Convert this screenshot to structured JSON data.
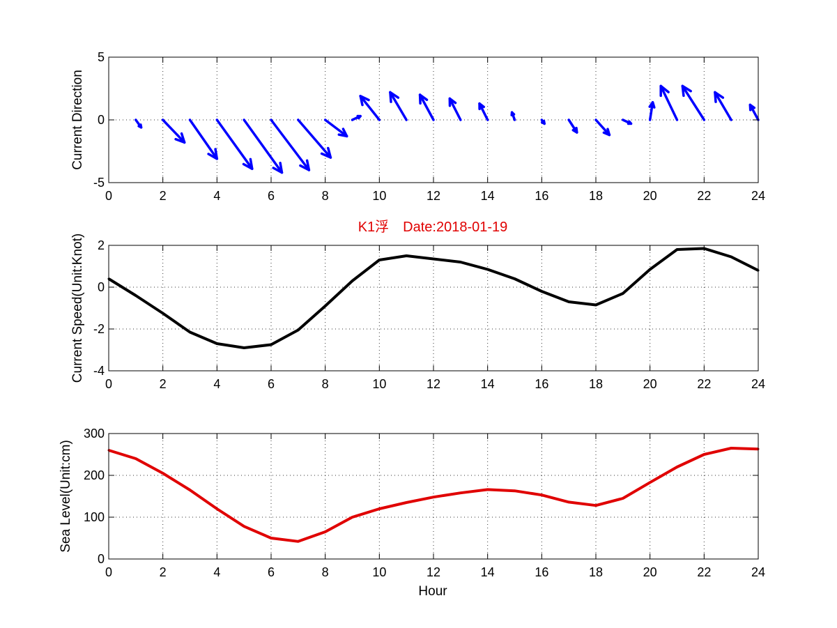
{
  "title": {
    "text": "K1浮　Date:2018-01-19",
    "color": "#e00000"
  },
  "chart_data": [
    {
      "type": "quiver",
      "ylabel": "Current Direction",
      "xlim": [
        0,
        24
      ],
      "ylim": [
        -5,
        5
      ],
      "xticks": [
        0,
        2,
        4,
        6,
        8,
        10,
        12,
        14,
        16,
        18,
        20,
        22,
        24
      ],
      "yticks": [
        -5,
        0,
        5
      ],
      "grid": true,
      "color": "#0000ff",
      "vectors": [
        {
          "x": 1,
          "u": 0.2,
          "v": -0.6
        },
        {
          "x": 2,
          "u": 0.8,
          "v": -1.8
        },
        {
          "x": 3,
          "u": 1.0,
          "v": -3.1
        },
        {
          "x": 4,
          "u": 1.3,
          "v": -3.9
        },
        {
          "x": 5,
          "u": 1.4,
          "v": -4.2
        },
        {
          "x": 6,
          "u": 1.4,
          "v": -4.0
        },
        {
          "x": 7,
          "u": 1.2,
          "v": -3.0
        },
        {
          "x": 8,
          "u": 0.8,
          "v": -1.3
        },
        {
          "x": 9,
          "u": 0.3,
          "v": 0.3
        },
        {
          "x": 10,
          "u": -0.7,
          "v": 1.9
        },
        {
          "x": 11,
          "u": -0.6,
          "v": 2.2
        },
        {
          "x": 12,
          "u": -0.5,
          "v": 2.0
        },
        {
          "x": 13,
          "u": -0.4,
          "v": 1.7
        },
        {
          "x": 14,
          "u": -0.3,
          "v": 1.3
        },
        {
          "x": 15,
          "u": -0.1,
          "v": 0.6
        },
        {
          "x": 16,
          "u": 0.1,
          "v": -0.3
        },
        {
          "x": 17,
          "u": 0.3,
          "v": -1.0
        },
        {
          "x": 18,
          "u": 0.5,
          "v": -1.2
        },
        {
          "x": 19,
          "u": 0.3,
          "v": -0.3
        },
        {
          "x": 20,
          "u": 0.1,
          "v": 1.4
        },
        {
          "x": 21,
          "u": -0.6,
          "v": 2.7
        },
        {
          "x": 22,
          "u": -0.8,
          "v": 2.7
        },
        {
          "x": 23,
          "u": -0.6,
          "v": 2.2
        },
        {
          "x": 24,
          "u": -0.3,
          "v": 1.2
        }
      ]
    },
    {
      "type": "line",
      "ylabel": "Current Speed(Unit:Knot)",
      "xlim": [
        0,
        24
      ],
      "ylim": [
        -4,
        2
      ],
      "xticks": [
        0,
        2,
        4,
        6,
        8,
        10,
        12,
        14,
        16,
        18,
        20,
        22,
        24
      ],
      "yticks": [
        -4,
        -2,
        0,
        2
      ],
      "grid": true,
      "color": "#000000",
      "x": [
        0,
        1,
        2,
        3,
        4,
        5,
        6,
        7,
        8,
        9,
        10,
        11,
        12,
        13,
        14,
        15,
        16,
        17,
        18,
        19,
        20,
        21,
        22,
        23,
        24
      ],
      "y": [
        0.4,
        -0.4,
        -1.25,
        -2.15,
        -2.7,
        -2.9,
        -2.75,
        -2.05,
        -0.9,
        0.3,
        1.3,
        1.5,
        1.35,
        1.2,
        0.85,
        0.4,
        -0.2,
        -0.7,
        -0.85,
        -0.3,
        0.85,
        1.8,
        1.85,
        1.45,
        0.8
      ]
    },
    {
      "type": "line",
      "xlabel": "Hour",
      "ylabel": "Sea Level(Unit:cm)",
      "xlim": [
        0,
        24
      ],
      "ylim": [
        0,
        300
      ],
      "xticks": [
        0,
        2,
        4,
        6,
        8,
        10,
        12,
        14,
        16,
        18,
        20,
        22,
        24
      ],
      "yticks": [
        0,
        100,
        200,
        300
      ],
      "grid": true,
      "color": "#e00000",
      "x": [
        0,
        1,
        2,
        3,
        4,
        5,
        6,
        7,
        8,
        9,
        10,
        11,
        12,
        13,
        14,
        15,
        16,
        17,
        18,
        19,
        20,
        21,
        22,
        23,
        24
      ],
      "y": [
        260,
        240,
        205,
        165,
        120,
        78,
        50,
        42,
        65,
        100,
        120,
        135,
        148,
        158,
        166,
        163,
        153,
        136,
        128,
        145,
        183,
        220,
        250,
        265,
        263
      ]
    }
  ]
}
